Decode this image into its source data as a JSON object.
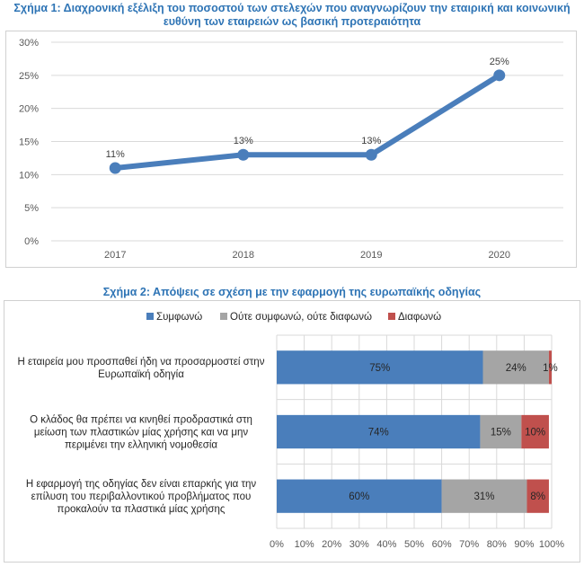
{
  "chart_data": [
    {
      "type": "line",
      "title_line1": "Σχήμα 1: Διαχρονική εξέλιξη του ποσοστού των στελεχών που αναγνωρίζουν την εταιρική και κοινωνική",
      "title_line2": "ευθύνη των εταιρειών ως βασική προτεραιότητα",
      "categories": [
        "2017",
        "2018",
        "2019",
        "2020"
      ],
      "values": [
        11,
        13,
        13,
        25
      ],
      "data_labels": [
        "11%",
        "13%",
        "13%",
        "25%"
      ],
      "yticks": [
        "0%",
        "5%",
        "10%",
        "15%",
        "20%",
        "25%",
        "30%"
      ],
      "ylim": [
        0,
        30
      ],
      "color": "#4a7ebb",
      "grid": true
    },
    {
      "type": "bar",
      "orientation": "horizontal-stacked-100",
      "title": "Σχήμα 2: Απόψεις σε σχέση με την εφαρμογή της ευρωπαϊκής οδηγίας",
      "categories": [
        [
          "Η εταιρεία μου προσπαθεί ήδη να προσαρμοστεί στην",
          "Ευρωπαϊκή οδηγία"
        ],
        [
          "Ο κλάδος θα πρέπει να κινηθεί προδραστικά στη",
          "μείωση των πλαστικών μίας χρήσης και να μην",
          "περιμένει την ελληνική νομοθεσία"
        ],
        [
          "Η εφαρμογή της οδηγίας δεν είναι επαρκής για την",
          "επίλυση του περιβαλλοντικού προβλήματος που",
          "προκαλούν τα πλαστικά μίας χρήσης"
        ]
      ],
      "series": [
        {
          "name": "Συμφωνώ",
          "color": "#4a7ebb",
          "values": [
            75,
            74,
            60
          ],
          "labels": [
            "75%",
            "74%",
            "60%"
          ]
        },
        {
          "name": "Ούτε συμφωνώ, ούτε διαφωνώ",
          "color": "#a5a5a5",
          "values": [
            24,
            15,
            31
          ],
          "labels": [
            "24%",
            "15%",
            "31%"
          ]
        },
        {
          "name": "Διαφωνώ",
          "color": "#c0504d",
          "values": [
            1,
            10,
            8
          ],
          "labels": [
            "1%",
            "10%",
            "8%"
          ]
        }
      ],
      "xticks": [
        "0%",
        "10%",
        "20%",
        "30%",
        "40%",
        "50%",
        "60%",
        "70%",
        "80%",
        "90%",
        "100%"
      ],
      "xlim": [
        0,
        100
      ],
      "legend": "top"
    }
  ]
}
